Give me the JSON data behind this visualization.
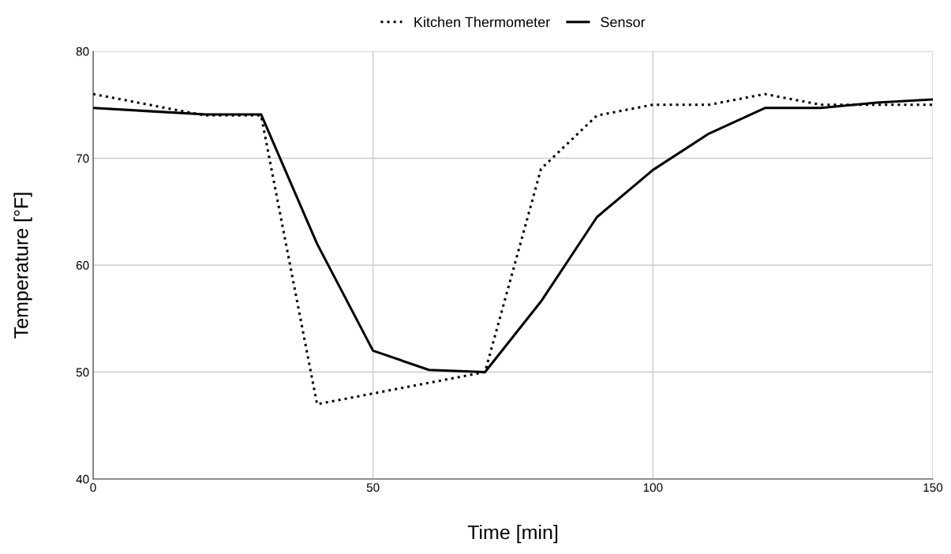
{
  "chart_data": {
    "type": "line",
    "xlabel": "Time [min]",
    "ylabel": "Temperature [°F]",
    "x": [
      0,
      10,
      20,
      30,
      40,
      50,
      60,
      70,
      80,
      90,
      100,
      110,
      120,
      130,
      140,
      150
    ],
    "series": [
      {
        "name": "Kitchen Thermometer",
        "color": "#000000",
        "line_style": "dotted",
        "values": [
          76,
          75,
          74,
          74,
          47,
          48,
          49,
          50,
          69,
          74,
          75,
          75,
          76,
          75,
          75,
          75
        ]
      },
      {
        "name": "Sensor",
        "color": "#000000",
        "line_style": "solid",
        "values": [
          74.7,
          74.4,
          74.1,
          74.1,
          62,
          52,
          50.2,
          50,
          56.6,
          64.5,
          68.9,
          72.3,
          74.7,
          74.7,
          75.2,
          75.5
        ]
      }
    ],
    "xlim": [
      0,
      150
    ],
    "xticks": [
      0,
      50,
      100,
      150
    ],
    "ylim": [
      40,
      80
    ],
    "yticks": [
      40,
      50,
      60,
      70,
      80
    ],
    "grid": true,
    "legend": "top",
    "marker": "none"
  }
}
